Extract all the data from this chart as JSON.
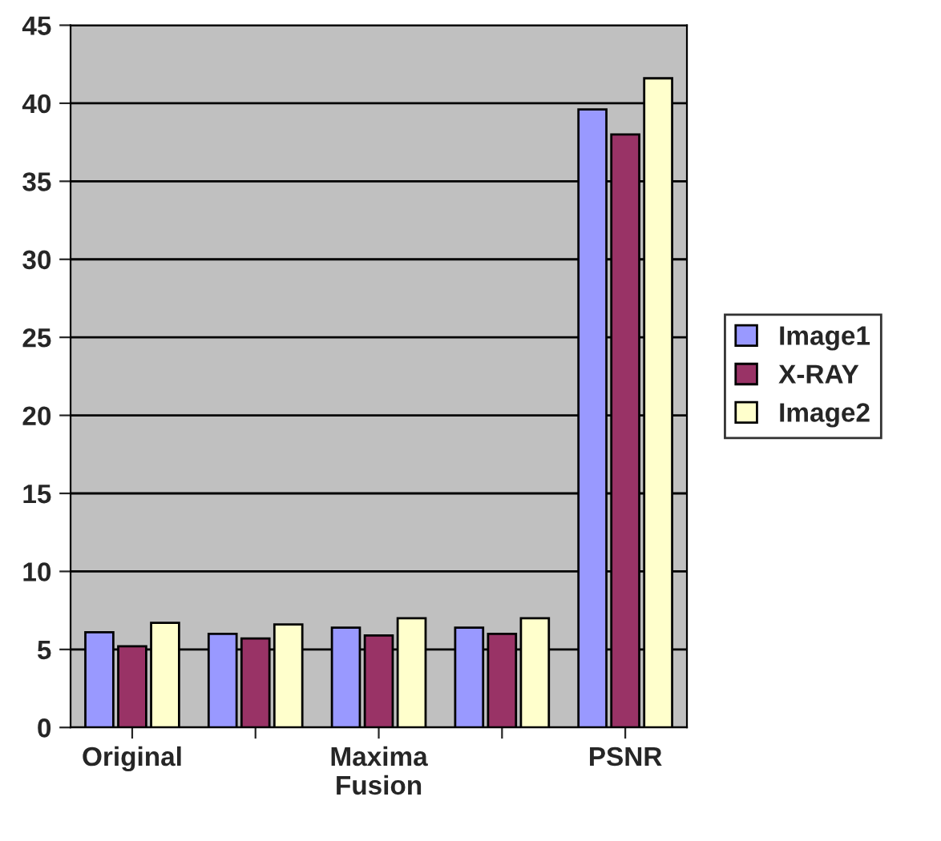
{
  "chart_data": {
    "type": "bar",
    "categories": [
      "Original",
      null,
      "Maxima\nFusion",
      null,
      "PSNR"
    ],
    "series": [
      {
        "name": "Image1",
        "color": "#9999ff",
        "values": [
          6.1,
          6.0,
          6.4,
          6.4,
          39.6
        ]
      },
      {
        "name": "X-RAY",
        "color": "#993366",
        "values": [
          5.2,
          5.7,
          5.9,
          6.0,
          38.0
        ]
      },
      {
        "name": "Image2",
        "color": "#ffffcc",
        "values": [
          6.7,
          6.6,
          7.0,
          7.0,
          41.6
        ]
      }
    ],
    "ylim": [
      0,
      45
    ],
    "yticks": [
      0,
      5,
      10,
      15,
      20,
      25,
      30,
      35,
      40,
      45
    ],
    "grid": "y",
    "legend": "right"
  }
}
